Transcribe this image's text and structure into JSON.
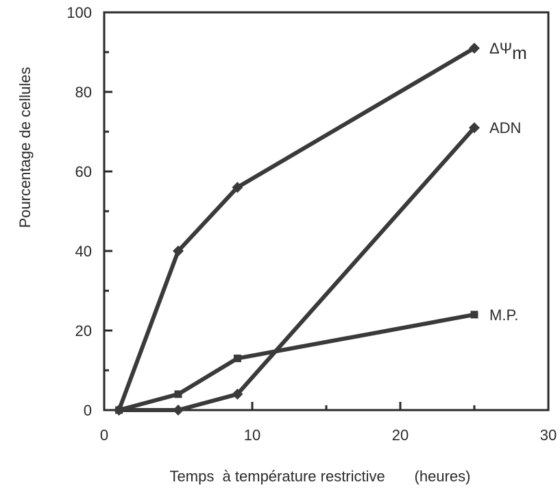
{
  "chart_data": {
    "type": "line",
    "xlabel": "Temps  à température restrictive       (heures)",
    "ylabel": "Pourcentage de    cellules",
    "xlim": [
      0,
      30
    ],
    "ylim": [
      0,
      100
    ],
    "x_ticks": [
      "0",
      "10",
      "20",
      "30"
    ],
    "y_ticks": [
      "0",
      "20",
      "40",
      "60",
      "80",
      "100"
    ],
    "grid": false,
    "legend": "none; series labelled at line ends",
    "series": [
      {
        "name": "ΔΨm",
        "label_main": "ΔΨ",
        "label_sub": "m",
        "marker": "diamond",
        "x": [
          1,
          5,
          9,
          25
        ],
        "y": [
          0,
          40,
          56,
          91
        ]
      },
      {
        "name": "ADN",
        "marker": "diamond",
        "x": [
          1,
          5,
          9,
          25
        ],
        "y": [
          0,
          0,
          4,
          71
        ]
      },
      {
        "name": "M.P.",
        "marker": "square",
        "x": [
          1,
          5,
          9,
          25
        ],
        "y": [
          0,
          4,
          13,
          24
        ]
      }
    ],
    "colors": {
      "line": "#3a3a3a",
      "axis": "#2a2a2a"
    }
  }
}
